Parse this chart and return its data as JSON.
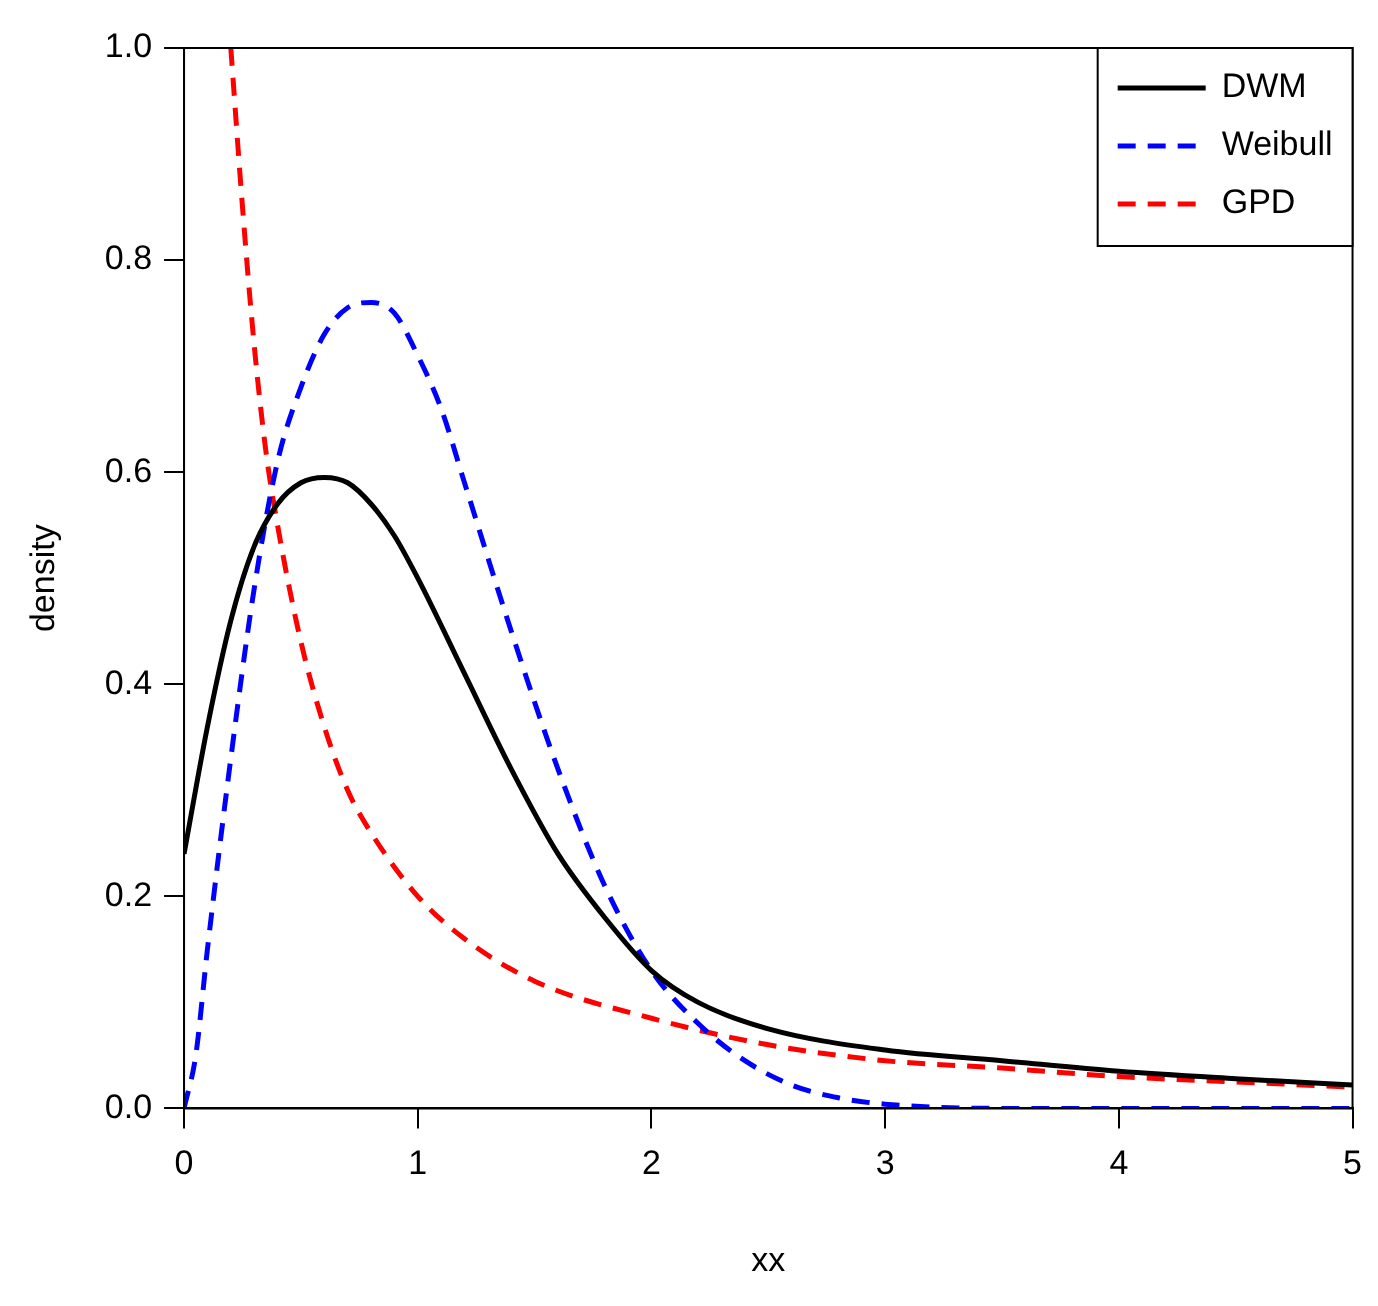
{
  "chart_data": {
    "type": "line",
    "xlabel": "xx",
    "ylabel": "density",
    "xlim": [
      0,
      5
    ],
    "ylim": [
      0,
      1
    ],
    "xticks": [
      0,
      1,
      2,
      3,
      4,
      5
    ],
    "yticks": [
      {
        "value": 0,
        "label": "0.0"
      },
      {
        "value": 0.2,
        "label": "0.2"
      },
      {
        "value": 0.4,
        "label": "0.4"
      },
      {
        "value": 0.6,
        "label": "0.6"
      },
      {
        "value": 0.8,
        "label": "0.8"
      },
      {
        "value": 1,
        "label": "1.0"
      }
    ],
    "grid": false,
    "legend": "top right",
    "marker": "none",
    "series": [
      {
        "name": "DWM",
        "color": "#000000",
        "line_style": "solid",
        "x": [
          0,
          0.1,
          0.2,
          0.3,
          0.4,
          0.5,
          0.6,
          0.7,
          0.8,
          0.9,
          1.0,
          1.2,
          1.4,
          1.6,
          1.8,
          2.0,
          2.2,
          2.5,
          3,
          3.5,
          4,
          4.5,
          5
        ],
        "values": [
          0.24,
          0.36,
          0.46,
          0.53,
          0.57,
          0.59,
          0.595,
          0.59,
          0.57,
          0.54,
          0.5,
          0.41,
          0.32,
          0.24,
          0.18,
          0.13,
          0.1,
          0.075,
          0.055,
          0.045,
          0.035,
          0.028,
          0.022
        ]
      },
      {
        "name": "Weibull",
        "color": "#0000ff",
        "line_style": "dashed",
        "x": [
          0,
          0.05,
          0.1,
          0.2,
          0.3,
          0.4,
          0.5,
          0.6,
          0.7,
          0.8,
          0.9,
          1.0,
          1.1,
          1.2,
          1.4,
          1.6,
          1.8,
          2.0,
          2.2,
          2.4,
          2.6,
          2.8,
          3.0,
          3.5,
          4,
          5
        ],
        "values": [
          0,
          0.05,
          0.15,
          0.33,
          0.49,
          0.61,
          0.68,
          0.73,
          0.755,
          0.76,
          0.75,
          0.71,
          0.66,
          0.59,
          0.45,
          0.32,
          0.21,
          0.13,
          0.08,
          0.045,
          0.022,
          0.01,
          0.004,
          0,
          0,
          0
        ]
      },
      {
        "name": "GPD",
        "color": "#ff0000",
        "line_style": "dashed",
        "x": [
          0.2,
          0.25,
          0.3,
          0.35,
          0.4,
          0.5,
          0.6,
          0.7,
          0.8,
          1.0,
          1.2,
          1.5,
          2,
          2.5,
          3,
          3.5,
          4,
          4.5,
          5
        ],
        "values": [
          1.0,
          0.85,
          0.72,
          0.62,
          0.55,
          0.44,
          0.36,
          0.3,
          0.26,
          0.2,
          0.16,
          0.12,
          0.085,
          0.06,
          0.045,
          0.038,
          0.03,
          0.025,
          0.02
        ]
      }
    ]
  }
}
